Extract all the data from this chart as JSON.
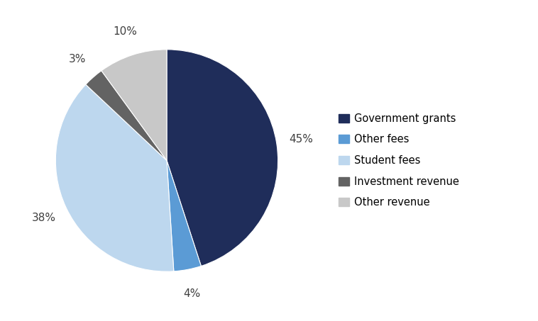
{
  "title": "",
  "labels": [
    "Government grants",
    "Other fees",
    "Student fees",
    "Investment revenue",
    "Other revenue"
  ],
  "values": [
    45,
    4,
    38,
    3,
    10
  ],
  "colors": [
    "#1F2D5A",
    "#5B9BD5",
    "#BDD7EE",
    "#636363",
    "#C8C8C8"
  ],
  "pct_labels": [
    "45%",
    "4%",
    "38%",
    "3%",
    "10%"
  ],
  "legend_labels": [
    "Government grants",
    "Other fees",
    "Student fees",
    "Investment revenue",
    "Other revenue"
  ],
  "startangle": 90,
  "background_color": "#ffffff"
}
